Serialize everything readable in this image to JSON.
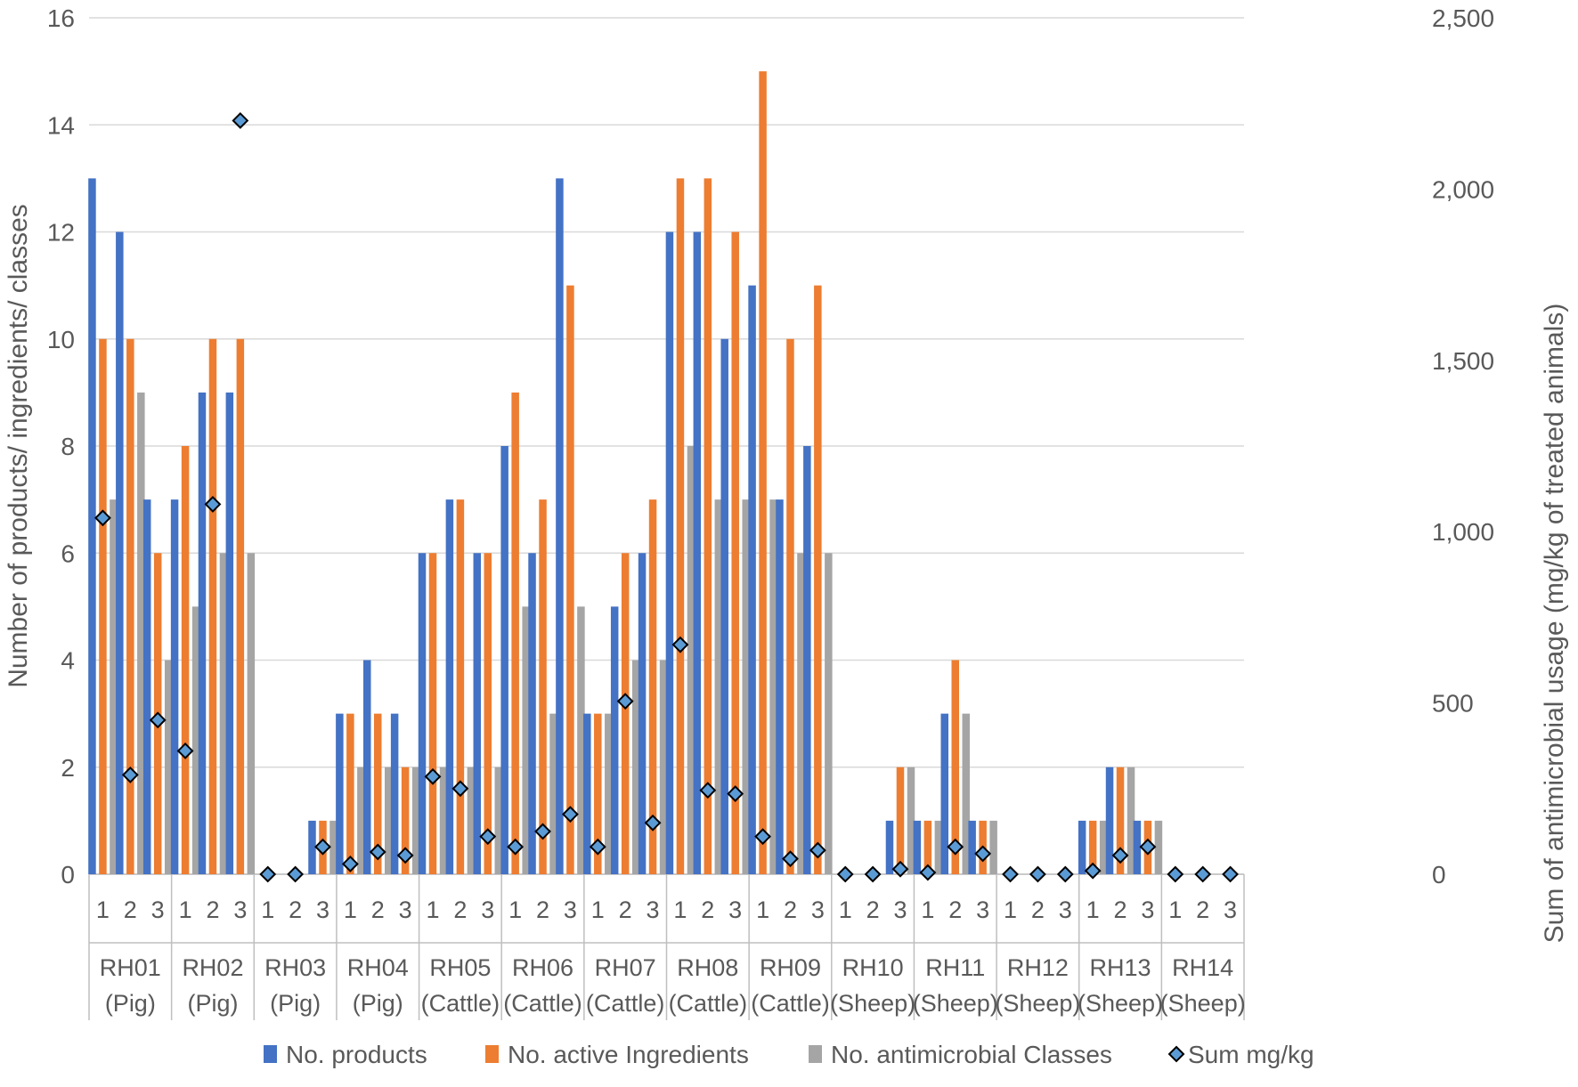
{
  "chart_data": {
    "type": "bar",
    "title": "",
    "ylabel": "Number of products/ ingredients/ classes",
    "y2label": "Sum of antimicrobial usage (mg/kg of treated animals)",
    "ylim": [
      0,
      16
    ],
    "y2lim": [
      0,
      2500
    ],
    "yticks": [
      "0",
      "2",
      "4",
      "6",
      "8",
      "10",
      "12",
      "14",
      "16"
    ],
    "y2ticks": [
      "0",
      "500",
      "1,000",
      "1,500",
      "2,000",
      "2,500"
    ],
    "grid": true,
    "legend_position": "bottom",
    "groups": [
      {
        "name": "RH01",
        "species": "(Pig)"
      },
      {
        "name": "RH02",
        "species": "(Pig)"
      },
      {
        "name": "RH03",
        "species": "(Pig)"
      },
      {
        "name": "RH04",
        "species": "(Pig)"
      },
      {
        "name": "RH05",
        "species": "(Cattle)"
      },
      {
        "name": "RH06",
        "species": "(Cattle)"
      },
      {
        "name": "RH07",
        "species": "(Cattle)"
      },
      {
        "name": "RH08",
        "species": "(Cattle)"
      },
      {
        "name": "RH09",
        "species": "(Cattle)"
      },
      {
        "name": "RH10",
        "species": "(Sheep)"
      },
      {
        "name": "RH11",
        "species": "(Sheep)"
      },
      {
        "name": "RH12",
        "species": "(Sheep)"
      },
      {
        "name": "RH13",
        "species": "(Sheep)"
      },
      {
        "name": "RH14",
        "species": "(Sheep)"
      }
    ],
    "subcategories": [
      "1",
      "2",
      "3"
    ],
    "series": [
      {
        "name": "No. products",
        "type": "bar",
        "axis": "left",
        "color": "#4472C4",
        "values": [
          13,
          12,
          7,
          7,
          9,
          9,
          0,
          0,
          1,
          3,
          4,
          3,
          6,
          7,
          6,
          8,
          6,
          13,
          3,
          5,
          6,
          12,
          12,
          10,
          11,
          7,
          8,
          0,
          0,
          1,
          1,
          3,
          1,
          0,
          0,
          0,
          1,
          2,
          1,
          0,
          0,
          0
        ]
      },
      {
        "name": "No. active Ingredients",
        "type": "bar",
        "axis": "left",
        "color": "#ED7D31",
        "values": [
          10,
          10,
          6,
          8,
          10,
          10,
          0,
          0,
          1,
          3,
          3,
          2,
          6,
          7,
          6,
          9,
          7,
          11,
          3,
          6,
          7,
          13,
          13,
          12,
          15,
          10,
          11,
          0,
          0,
          2,
          1,
          4,
          1,
          0,
          0,
          0,
          1,
          2,
          1,
          0,
          0,
          0
        ]
      },
      {
        "name": "No. antimicrobial Classes",
        "type": "bar",
        "axis": "left",
        "color": "#A5A5A5",
        "values": [
          7,
          9,
          4,
          5,
          6,
          6,
          0,
          0,
          1,
          2,
          2,
          2,
          2,
          2,
          2,
          5,
          3,
          5,
          3,
          4,
          4,
          8,
          7,
          7,
          7,
          6,
          6,
          0,
          0,
          2,
          1,
          3,
          1,
          0,
          0,
          0,
          1,
          2,
          1,
          0,
          0,
          0
        ]
      },
      {
        "name": "Sum mg/kg",
        "type": "scatter",
        "axis": "right",
        "color": "#5B9BD5",
        "values": [
          1040,
          290,
          450,
          360,
          1080,
          2200,
          0,
          0,
          80,
          30,
          65,
          55,
          285,
          250,
          110,
          80,
          125,
          175,
          80,
          505,
          150,
          670,
          245,
          235,
          110,
          45,
          70,
          0,
          0,
          15,
          5,
          80,
          60,
          0,
          0,
          0,
          10,
          55,
          80,
          0,
          0,
          0
        ]
      }
    ]
  }
}
